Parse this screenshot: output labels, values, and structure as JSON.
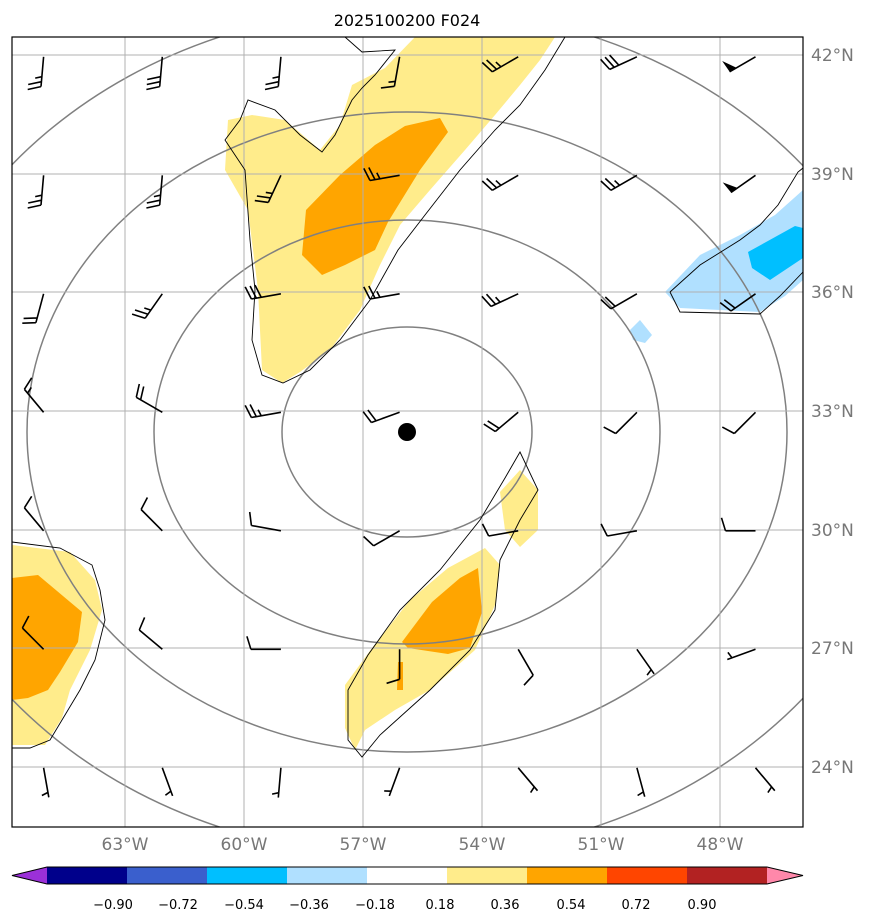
{
  "title": "2025100200 F024",
  "lon_labels": [
    "63°W",
    "60°W",
    "57°W",
    "54°W",
    "51°W",
    "48°W"
  ],
  "lat_labels": [
    "42°N",
    "39°N",
    "36°N",
    "33°N",
    "30°N",
    "27°N",
    "24°N"
  ],
  "colorbar": {
    "ticks": [
      "−0.90",
      "−0.72",
      "−0.54",
      "−0.36",
      "−0.18",
      "0.18",
      "0.36",
      "0.54",
      "0.72",
      "0.90"
    ],
    "colors": [
      "#9b30d8",
      "#00008b",
      "#3a5fcd",
      "#00bfff",
      "#b0e0ff",
      "#ffffff",
      "#ffec8b",
      "#ffa500",
      "#ff4500",
      "#b22222",
      "#ff88aa"
    ]
  },
  "center_marker": {
    "lon": -55.7,
    "lat": 32.5
  },
  "map": {
    "lon_range": [
      -65.8,
      -45.8
    ],
    "lat_range": [
      22.5,
      42.5
    ],
    "shading_colors": {
      "light_yellow": "#ffec8b",
      "orange": "#ffa500",
      "light_blue": "#b0e0ff",
      "deep_sky_blue": "#00bfff"
    },
    "range_rings": 4
  },
  "wind_barbs": {
    "lats": [
      42,
      39,
      36,
      33,
      30,
      27,
      24
    ],
    "lons": [
      -65,
      -62,
      -59,
      -56,
      -53,
      -50,
      -47
    ],
    "dirs": [
      [
        185,
        185,
        185,
        190,
        240,
        245,
        240
      ],
      [
        185,
        185,
        205,
        260,
        240,
        240,
        235
      ],
      [
        195,
        215,
        260,
        260,
        245,
        240,
        235
      ],
      [
        320,
        300,
        260,
        250,
        230,
        225,
        225
      ],
      [
        320,
        315,
        280,
        240,
        260,
        260,
        270
      ],
      [
        315,
        310,
        270,
        180,
        150,
        145,
        250
      ],
      [
        170,
        160,
        185,
        200,
        140,
        165,
        140
      ]
    ],
    "speeds": [
      [
        25,
        30,
        25,
        15,
        25,
        30,
        50
      ],
      [
        25,
        25,
        25,
        25,
        25,
        25,
        50
      ],
      [
        20,
        25,
        30,
        25,
        25,
        20,
        20
      ],
      [
        15,
        20,
        25,
        20,
        20,
        10,
        10
      ],
      [
        10,
        10,
        10,
        10,
        10,
        10,
        10
      ],
      [
        10,
        10,
        10,
        10,
        10,
        5,
        5
      ],
      [
        5,
        5,
        5,
        5,
        5,
        5,
        5
      ]
    ]
  }
}
